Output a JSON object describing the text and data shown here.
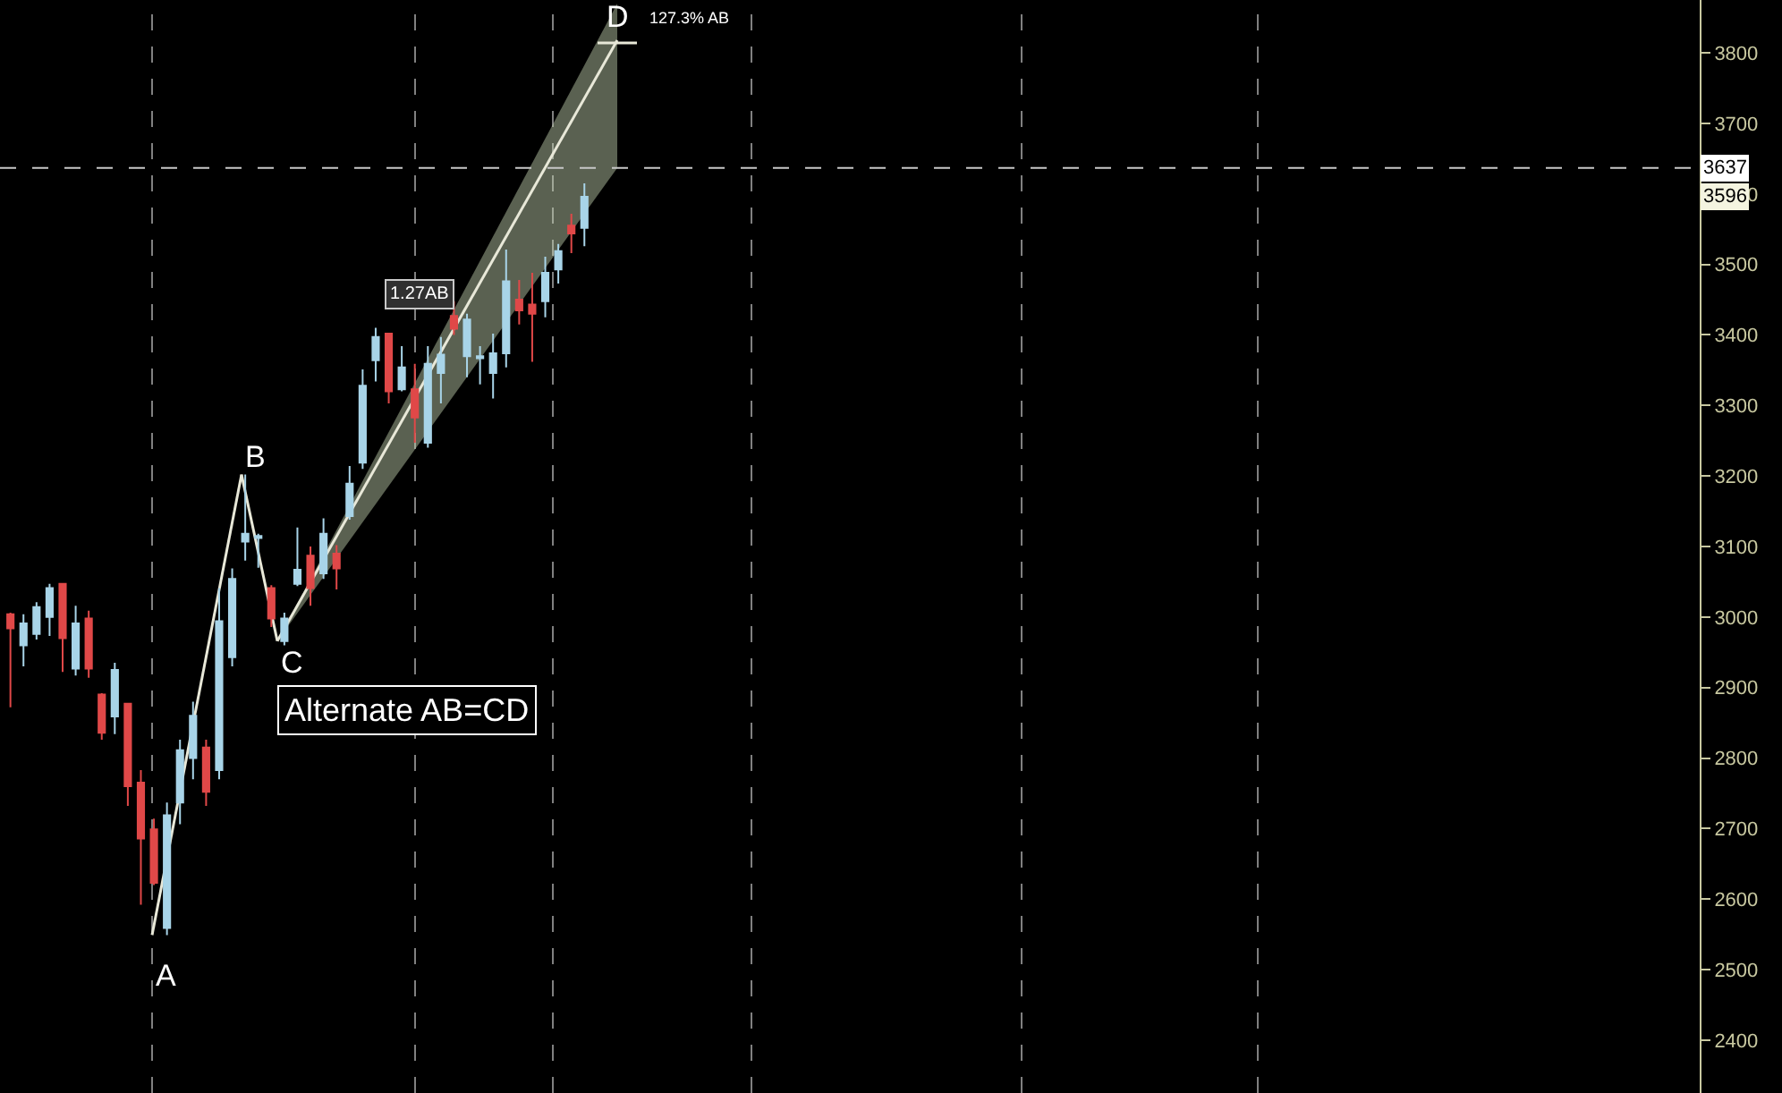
{
  "chart_data": {
    "type": "candlestick",
    "categories": [
      null,
      null,
      null,
      null,
      null,
      null,
      null,
      null,
      null,
      null,
      null,
      null,
      null,
      null,
      null,
      null,
      null,
      null,
      null,
      null,
      null,
      null,
      null,
      null,
      null,
      null,
      null,
      null,
      null,
      null,
      null,
      null,
      null,
      null,
      null,
      null,
      null,
      null,
      null,
      null,
      null,
      null,
      null,
      null,
      null,
      null,
      null,
      null,
      null,
      null,
      null,
      null,
      null,
      null,
      null,
      null,
      null,
      null,
      null,
      null,
      null,
      null,
      null,
      null,
      null,
      null,
      null,
      null,
      null,
      null,
      null,
      null,
      null,
      null,
      null,
      null,
      null,
      null,
      null,
      null,
      null,
      null,
      null,
      null,
      null,
      null,
      null,
      null,
      null,
      null,
      null,
      null,
      null,
      null,
      null,
      null,
      null,
      null,
      null,
      null,
      null,
      null,
      null,
      null,
      null,
      null,
      null,
      null,
      null,
      null,
      null,
      null,
      null,
      null,
      null,
      null,
      null,
      null,
      null,
      null,
      null,
      null,
      null,
      null,
      null,
      null,
      null,
      null,
      null,
      null
    ],
    "ohlc": [
      [
        3004,
        3006,
        2872,
        2984
      ],
      [
        2960,
        3004,
        2930,
        2991
      ],
      [
        2976,
        3021,
        2968,
        3014
      ],
      [
        3000,
        3047,
        2973,
        3041
      ],
      [
        3047,
        3047,
        2922,
        2970
      ],
      [
        2927,
        3016,
        2917,
        2991
      ],
      [
        2998,
        3009,
        2914,
        2927
      ],
      [
        2890,
        2892,
        2826,
        2836
      ],
      [
        2859,
        2935,
        2834,
        2925
      ],
      [
        2877,
        2877,
        2732,
        2760
      ],
      [
        2765,
        2783,
        2592,
        2686
      ],
      [
        2699,
        2714,
        2620,
        2623
      ],
      [
        2559,
        2737,
        2549,
        2719
      ],
      [
        2737,
        2826,
        2706,
        2811
      ],
      [
        2800,
        2880,
        2770,
        2860
      ],
      [
        2815,
        2826,
        2732,
        2752
      ],
      [
        2783,
        3041,
        2770,
        2994
      ],
      [
        2943,
        3069,
        2930,
        3054
      ],
      [
        3107,
        3202,
        3080,
        3118
      ],
      [
        3112,
        3118,
        3070,
        3115
      ],
      [
        3041,
        3045,
        2986,
        2998
      ],
      [
        2966,
        3006,
        2960,
        2998
      ],
      [
        3047,
        3127,
        3044,
        3067
      ],
      [
        3087,
        3100,
        3016,
        3041
      ],
      [
        3062,
        3140,
        3054,
        3118
      ],
      [
        3090,
        3102,
        3039,
        3069
      ],
      [
        3143,
        3214,
        3138,
        3189
      ],
      [
        3219,
        3351,
        3210,
        3328
      ],
      [
        3364,
        3410,
        3334,
        3397
      ],
      [
        3402,
        3402,
        3303,
        3320
      ],
      [
        3323,
        3384,
        3320,
        3354
      ],
      [
        3323,
        3359,
        3247,
        3283
      ],
      [
        3247,
        3384,
        3240,
        3359
      ],
      [
        3346,
        3397,
        3303,
        3372
      ],
      [
        3427,
        3448,
        3400,
        3409
      ],
      [
        3370,
        3430,
        3340,
        3422
      ],
      [
        3367,
        3384,
        3330,
        3370
      ],
      [
        3346,
        3402,
        3310,
        3374
      ],
      [
        3374,
        3521,
        3354,
        3476
      ],
      [
        3450,
        3478,
        3415,
        3435
      ],
      [
        3443,
        3488,
        3362,
        3430
      ],
      [
        3448,
        3511,
        3425,
        3488
      ],
      [
        3493,
        3529,
        3473,
        3519
      ],
      [
        3555,
        3572,
        3516,
        3544
      ],
      [
        3552,
        3615,
        3526,
        3596
      ],
      null,
      null,
      null,
      null,
      null,
      null,
      null,
      null,
      null,
      null,
      null,
      null,
      null,
      null,
      null,
      null,
      null,
      null,
      null,
      null,
      null,
      null,
      null,
      null,
      null,
      null,
      null,
      null,
      null,
      null,
      null,
      null,
      null,
      null,
      null,
      null,
      null,
      null,
      null,
      null,
      null,
      null,
      null,
      null,
      null,
      null,
      null,
      null,
      null,
      null,
      null,
      null,
      null,
      null,
      null,
      null,
      null,
      null,
      null,
      null,
      null,
      null,
      null,
      null,
      null,
      null,
      null,
      null,
      null,
      null,
      null,
      null,
      null,
      null,
      null,
      null,
      null,
      null,
      null,
      null,
      null,
      null,
      null,
      null,
      null
    ],
    "colors": [
      "#e04848",
      "#a8d4e8",
      "#a8d4e8",
      "#a8d4e8",
      "#e04848",
      "#a8d4e8",
      "#e04848",
      "#e04848",
      "#a8d4e8",
      "#e04848",
      "#e04848",
      "#e04848",
      "#a8d4e8",
      "#a8d4e8",
      "#a8d4e8",
      "#e04848",
      "#a8d4e8",
      "#a8d4e8",
      "#a8d4e8",
      "#a8d4e8",
      "#e04848",
      "#a8d4e8",
      "#a8d4e8",
      "#e04848",
      "#a8d4e8",
      "#e04848",
      "#a8d4e8",
      "#a8d4e8",
      "#a8d4e8",
      "#e04848",
      "#a8d4e8",
      "#e04848",
      "#a8d4e8",
      "#a8d4e8",
      "#e04848",
      "#a8d4e8",
      "#a8d4e8",
      "#a8d4e8",
      "#a8d4e8",
      "#e04848",
      "#e04848",
      "#a8d4e8",
      "#a8d4e8",
      "#e04848",
      "#a8d4e8",
      null,
      null,
      null,
      null,
      null,
      null,
      null,
      null,
      null,
      null,
      null,
      null,
      null,
      null,
      null,
      null,
      null,
      null,
      null,
      null,
      null,
      null,
      null,
      null,
      null,
      null,
      null,
      null,
      null,
      null,
      null,
      null,
      null,
      null,
      null,
      null,
      null,
      null,
      null,
      null,
      null,
      null,
      null,
      null,
      null,
      null,
      null,
      null,
      null,
      null,
      null,
      null,
      null,
      null,
      null,
      null,
      null,
      null,
      null,
      null,
      null,
      null,
      null,
      null,
      null,
      null,
      null,
      null,
      null,
      null,
      null,
      null,
      null,
      null,
      null,
      null,
      null,
      null,
      null,
      null,
      null,
      null,
      null,
      null,
      null
    ],
    "ylim": [
      2325,
      3875
    ],
    "yticks": [
      2400,
      2500,
      2600,
      2700,
      2800,
      2900,
      3000,
      3100,
      3200,
      3300,
      3400,
      3500,
      3600,
      3700,
      3800
    ],
    "tick_labels": "y",
    "grid": false,
    "ref_lines": [
      {
        "axis": "y",
        "value": 3637,
        "label": "3637",
        "line_style": "dashed",
        "color": "#c8c8c8"
      }
    ],
    "annotations": [
      "A",
      "B",
      "C",
      "D",
      "127.3% AB",
      "1.27AB",
      "Alternate AB=CD",
      {
        "text": "3596",
        "y": 3596
      }
    ]
  }
}
